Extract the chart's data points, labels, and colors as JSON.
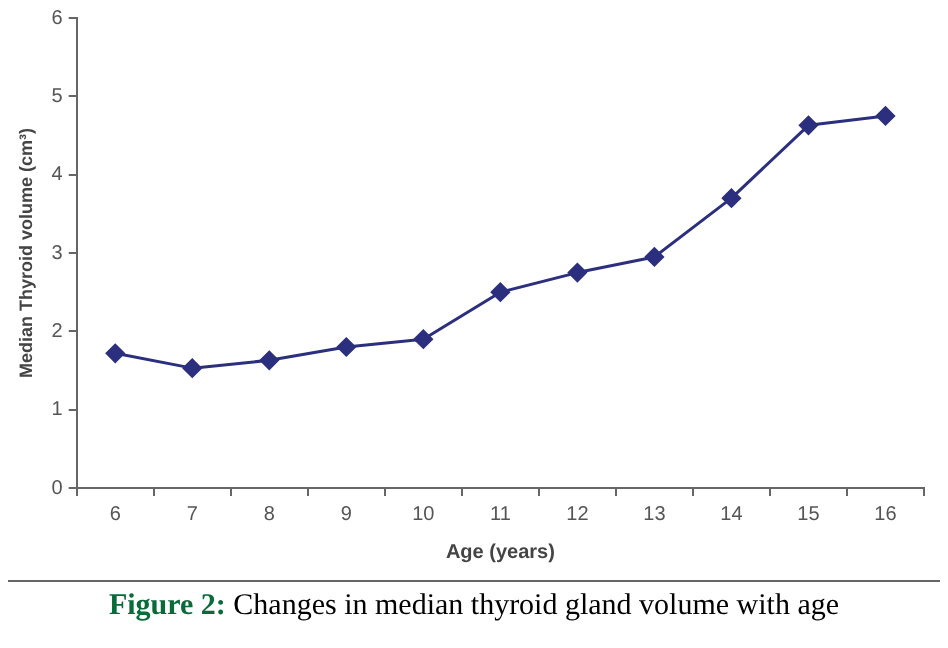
{
  "chart_data": {
    "type": "line",
    "xlabel": "Age (years)",
    "ylabel": "Median Thyroid volume (cm³)",
    "categories": [
      "6",
      "7",
      "8",
      "9",
      "10",
      "11",
      "12",
      "13",
      "14",
      "15",
      "16"
    ],
    "series": [
      {
        "color": "#2b2f7e",
        "values": [
          1.72,
          1.53,
          1.63,
          1.8,
          1.9,
          2.5,
          2.75,
          2.95,
          3.7,
          4.63,
          4.75
        ]
      }
    ],
    "ylim": [
      0,
      6
    ],
    "yticks": [
      0,
      1,
      2,
      3,
      4,
      5,
      6
    ],
    "grid": false,
    "legend": false,
    "marker": "diamond",
    "line_style": "solid",
    "annotations": [
      "Figure 2: Changes in median thyroid gland volume with age"
    ]
  }
}
